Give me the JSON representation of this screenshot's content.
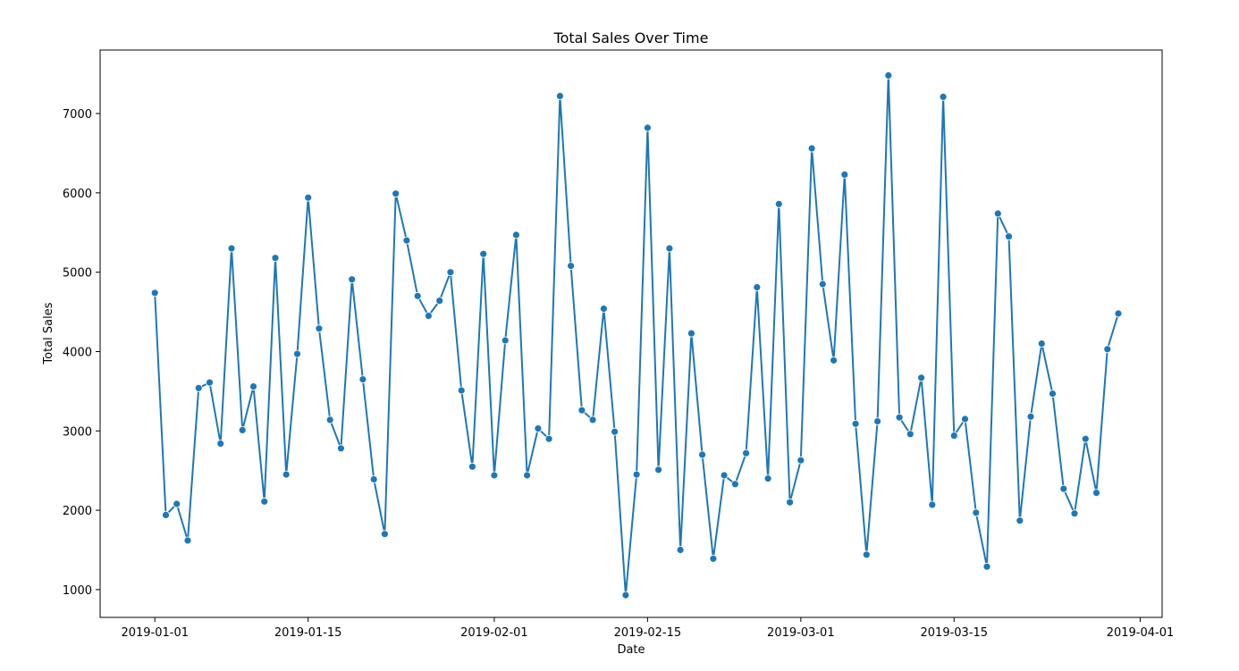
{
  "chart_data": {
    "type": "line",
    "title": "Total Sales Over Time",
    "xlabel": "Date",
    "ylabel": "Total Sales",
    "x_ticks": [
      "2019-01-01",
      "2019-01-15",
      "2019-02-01",
      "2019-02-15",
      "2019-03-01",
      "2019-03-15",
      "2019-04-01"
    ],
    "y_ticks": [
      1000,
      2000,
      3000,
      4000,
      5000,
      6000,
      7000
    ],
    "xlim": [
      "2018-12-27",
      "2019-04-03"
    ],
    "ylim": [
      650,
      7800
    ],
    "grid": false,
    "marker": "circle",
    "color": "#1f77b4",
    "series": [
      {
        "x_start": "2019-01-01",
        "x_step_days": 1,
        "values": [
          4740,
          1940,
          2080,
          1620,
          3540,
          3610,
          2840,
          5300,
          3010,
          3560,
          2110,
          5180,
          2450,
          3970,
          5940,
          4290,
          3140,
          2780,
          4910,
          3650,
          2390,
          1700,
          5990,
          5400,
          4700,
          4450,
          4640,
          5000,
          3510,
          2550,
          5230,
          2440,
          4140,
          5470,
          2440,
          3030,
          2900,
          7220,
          5080,
          3260,
          3140,
          4540,
          2990,
          930,
          2450,
          6820,
          2510,
          5300,
          1500,
          4230,
          2700,
          1390,
          2440,
          2330,
          2720,
          4810,
          2400,
          5860,
          2100,
          2630,
          6560,
          4850,
          3890,
          6230,
          3090,
          1440,
          3120,
          7480,
          3170,
          2960,
          3670,
          2070,
          7210,
          2940,
          3150,
          1970,
          1290,
          5740,
          5450,
          1870,
          3180,
          4100,
          3470,
          2270,
          1960,
          2900,
          2220,
          4030,
          4480
        ]
      }
    ]
  }
}
